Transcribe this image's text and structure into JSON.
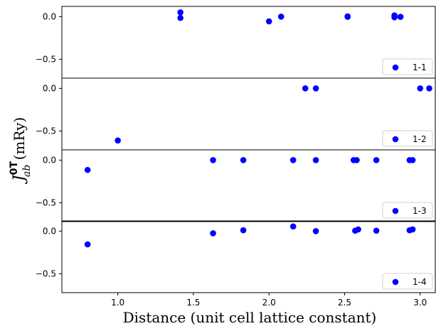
{
  "chart_data": {
    "type": "scatter",
    "xlabel": "Distance (unit cell lattice constant)",
    "ylabel_main": "J",
    "ylabel_sup": "0T",
    "ylabel_sub": "ab",
    "ylabel_unit": " (mRy)",
    "xlim": [
      0.63,
      3.1
    ],
    "ylim": [
      -0.72,
      0.12
    ],
    "x_ticks": [
      1.0,
      1.5,
      2.0,
      2.5,
      3.0
    ],
    "x_tick_labels": [
      "1.0",
      "1.5",
      "2.0",
      "2.5",
      "3.0"
    ],
    "y_ticks": [
      0.0,
      -0.5
    ],
    "y_tick_labels": [
      "0.0",
      "−0.5"
    ],
    "grid": false,
    "legend_placement": "lower-right",
    "marker_color": "#0000ff",
    "panels": [
      {
        "legend": "1-1",
        "points": [
          [
            1.414,
            0.05
          ],
          [
            1.414,
            -0.015
          ],
          [
            2.0,
            -0.055
          ],
          [
            2.08,
            0.0
          ],
          [
            2.52,
            0.003
          ],
          [
            2.52,
            -0.002
          ],
          [
            2.83,
            0.015
          ],
          [
            2.83,
            -0.008
          ],
          [
            2.87,
            -0.002
          ]
        ]
      },
      {
        "legend": "1-2",
        "points": [
          [
            1.0,
            -0.61
          ],
          [
            2.24,
            0.0
          ],
          [
            2.31,
            0.0
          ],
          [
            3.0,
            0.0
          ],
          [
            3.06,
            0.0
          ]
        ]
      },
      {
        "legend": "1-3",
        "points": [
          [
            0.8,
            -0.115
          ],
          [
            1.63,
            0.0
          ],
          [
            1.83,
            0.0
          ],
          [
            2.16,
            0.0
          ],
          [
            2.31,
            0.0
          ],
          [
            2.56,
            0.0
          ],
          [
            2.58,
            0.0
          ],
          [
            2.71,
            0.0
          ],
          [
            2.93,
            0.0
          ],
          [
            2.95,
            0.0
          ]
        ]
      },
      {
        "legend": "1-4",
        "points": [
          [
            0.8,
            -0.155
          ],
          [
            1.63,
            -0.025
          ],
          [
            1.83,
            0.01
          ],
          [
            2.16,
            0.055
          ],
          [
            2.31,
            0.0
          ],
          [
            2.57,
            0.005
          ],
          [
            2.59,
            0.02
          ],
          [
            2.71,
            0.005
          ],
          [
            2.93,
            0.01
          ],
          [
            2.95,
            0.02
          ]
        ]
      }
    ]
  }
}
